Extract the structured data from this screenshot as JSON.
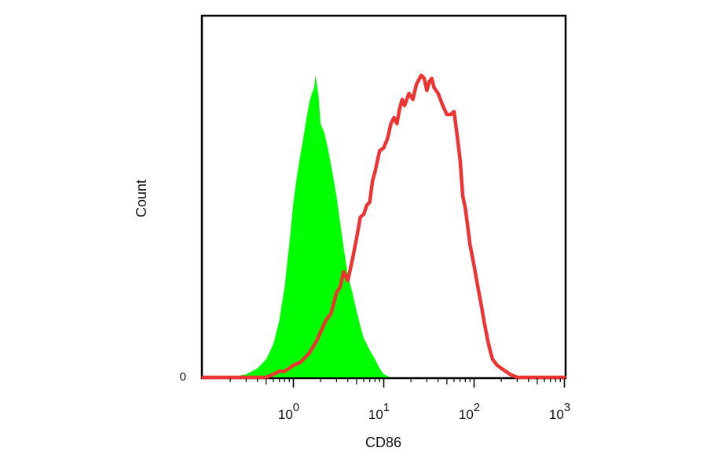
{
  "chart_data": {
    "type": "histogram",
    "xlabel": "CD86",
    "ylabel": "Count",
    "x_scale": "log10",
    "xlim": [
      0.1,
      1000
    ],
    "ylim": [
      0,
      100
    ],
    "y_tick_labels": [
      {
        "value": 0,
        "label": "0"
      }
    ],
    "x_major_ticks": [
      {
        "value": 1,
        "base": "10",
        "exp": "0"
      },
      {
        "value": 10,
        "base": "10",
        "exp": "1"
      },
      {
        "value": 100,
        "base": "10",
        "exp": "2"
      },
      {
        "value": 1000,
        "base": "10",
        "exp": "3"
      }
    ],
    "grid": false,
    "legend": "none",
    "series": [
      {
        "style": "filled",
        "color": "#00ff00",
        "points": [
          [
            0.1,
            0
          ],
          [
            0.2,
            0
          ],
          [
            0.3,
            1
          ],
          [
            0.4,
            3
          ],
          [
            0.5,
            6
          ],
          [
            0.6,
            11
          ],
          [
            0.7,
            19
          ],
          [
            0.8,
            30
          ],
          [
            0.9,
            44
          ],
          [
            1.0,
            58
          ],
          [
            1.1,
            67
          ],
          [
            1.2,
            74
          ],
          [
            1.3,
            80
          ],
          [
            1.4,
            86
          ],
          [
            1.5,
            91
          ],
          [
            1.6,
            94
          ],
          [
            1.7,
            96
          ],
          [
            1.75,
            100
          ],
          [
            1.8,
            98
          ],
          [
            1.9,
            93
          ],
          [
            2.0,
            84
          ],
          [
            2.2,
            81
          ],
          [
            2.4,
            76
          ],
          [
            2.7,
            68
          ],
          [
            3.0,
            60
          ],
          [
            3.3,
            51
          ],
          [
            3.6,
            43
          ],
          [
            4.0,
            34
          ],
          [
            4.5,
            28
          ],
          [
            5.0,
            22
          ],
          [
            5.5,
            17
          ],
          [
            6.0,
            13
          ],
          [
            7.0,
            9
          ],
          [
            8.0,
            6
          ],
          [
            9.0,
            3
          ],
          [
            10,
            1
          ],
          [
            12,
            0
          ],
          [
            15,
            0
          ],
          [
            1000,
            0
          ]
        ]
      },
      {
        "style": "line",
        "color": "#ee3333",
        "points": [
          [
            0.1,
            0
          ],
          [
            0.3,
            0
          ],
          [
            0.5,
            0
          ],
          [
            0.6,
            1
          ],
          [
            0.7,
            2
          ],
          [
            0.8,
            2
          ],
          [
            0.9,
            3
          ],
          [
            1.0,
            4
          ],
          [
            1.2,
            5
          ],
          [
            1.5,
            8
          ],
          [
            1.8,
            12
          ],
          [
            2.0,
            15
          ],
          [
            2.3,
            19
          ],
          [
            2.6,
            21
          ],
          [
            3.0,
            28
          ],
          [
            3.3,
            30
          ],
          [
            3.6,
            35
          ],
          [
            4.0,
            32
          ],
          [
            4.5,
            39
          ],
          [
            5.0,
            46
          ],
          [
            5.5,
            53
          ],
          [
            6.0,
            54
          ],
          [
            6.5,
            57
          ],
          [
            7.0,
            58
          ],
          [
            7.5,
            65
          ],
          [
            8.0,
            68
          ],
          [
            9.0,
            75
          ],
          [
            10,
            76
          ],
          [
            11,
            79
          ],
          [
            12,
            84
          ],
          [
            13,
            86
          ],
          [
            14,
            84
          ],
          [
            15,
            89
          ],
          [
            16,
            92
          ],
          [
            17,
            90
          ],
          [
            19,
            94
          ],
          [
            21,
            92
          ],
          [
            23,
            97
          ],
          [
            26,
            100
          ],
          [
            28,
            99
          ],
          [
            30,
            95
          ],
          [
            32,
            98
          ],
          [
            34,
            99
          ],
          [
            36,
            96
          ],
          [
            40,
            94
          ],
          [
            45,
            90
          ],
          [
            50,
            87
          ],
          [
            55,
            87
          ],
          [
            60,
            88
          ],
          [
            65,
            80
          ],
          [
            70,
            72
          ],
          [
            75,
            60
          ],
          [
            80,
            56
          ],
          [
            85,
            50
          ],
          [
            90,
            44
          ],
          [
            100,
            37
          ],
          [
            110,
            30
          ],
          [
            120,
            24
          ],
          [
            130,
            18
          ],
          [
            140,
            13
          ],
          [
            150,
            9
          ],
          [
            160,
            6
          ],
          [
            180,
            4
          ],
          [
            200,
            3
          ],
          [
            250,
            1
          ],
          [
            300,
            0
          ],
          [
            1000,
            0
          ]
        ]
      }
    ]
  }
}
